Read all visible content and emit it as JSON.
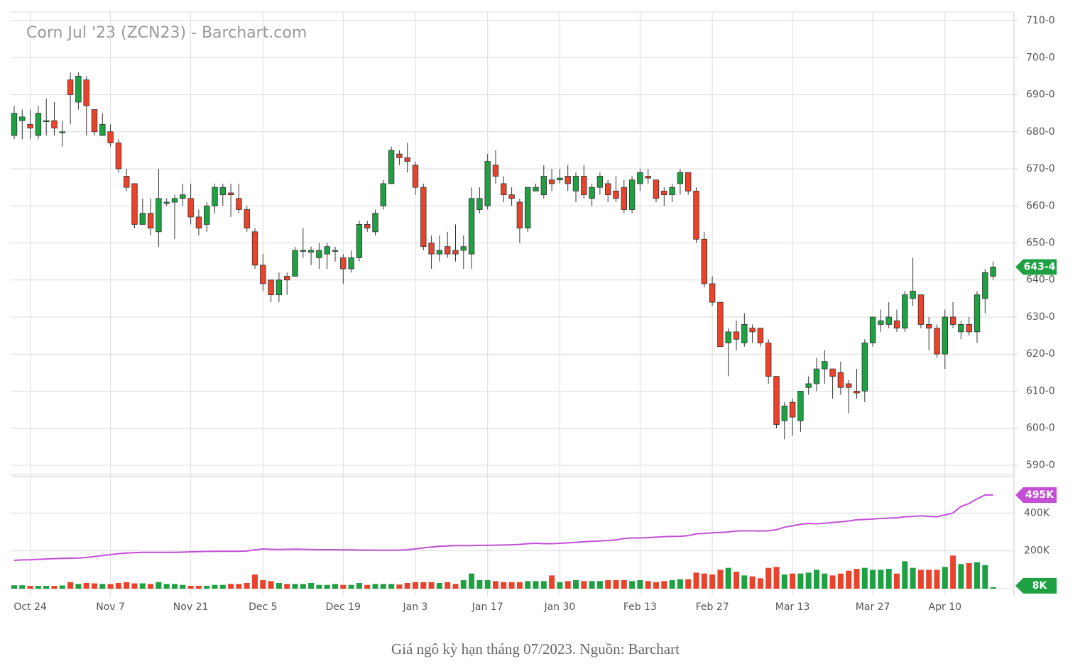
{
  "chart_data": {
    "type": "candlestick",
    "title": "Corn Jul '23 (ZCN23) - Barchart.com",
    "caption": "Giá ngô kỳ hạn tháng 07/2023. Nguồn: Barchart",
    "categories": [
      null,
      null,
      "Oct 24",
      null,
      null,
      null,
      null,
      null,
      null,
      null,
      null,
      null,
      "Nov 7",
      null,
      null,
      null,
      null,
      null,
      null,
      null,
      null,
      null,
      "Nov 21",
      null,
      null,
      null,
      null,
      null,
      null,
      null,
      null,
      "Dec 5",
      null,
      null,
      null,
      null,
      null,
      null,
      null,
      null,
      null,
      "Dec 19",
      null,
      null,
      null,
      null,
      null,
      null,
      null,
      null,
      "Jan 3",
      null,
      null,
      null,
      null,
      null,
      null,
      null,
      null,
      "Jan 17",
      null,
      null,
      null,
      null,
      null,
      null,
      null,
      null,
      "Jan 30",
      null,
      null,
      null,
      null,
      null,
      null,
      null,
      null,
      null,
      "Feb 13",
      null,
      null,
      null,
      null,
      null,
      null,
      null,
      null,
      "Feb 27",
      null,
      null,
      null,
      null,
      null,
      null,
      null,
      null,
      null,
      "Mar 13",
      null,
      null,
      null,
      null,
      null,
      null,
      null,
      null,
      null,
      "Mar 27",
      null,
      null,
      null,
      null,
      null,
      null,
      null,
      null,
      "Apr 10",
      null,
      null,
      null,
      null,
      null,
      null
    ],
    "open": [
      679,
      683,
      682,
      679,
      683,
      683,
      680,
      694,
      688,
      694,
      686,
      679,
      680,
      677,
      668,
      666,
      655,
      658,
      653,
      661,
      661,
      662,
      662,
      657,
      655,
      660,
      663,
      663.5,
      662,
      659,
      653,
      644,
      640,
      636,
      641,
      641,
      648,
      647.5,
      646,
      647,
      648,
      646,
      643,
      646,
      655,
      653,
      660,
      666,
      674,
      673,
      671,
      665,
      650,
      647,
      649,
      648,
      648,
      647,
      659,
      660,
      671,
      666,
      663,
      661,
      654,
      664,
      663,
      667,
      667,
      668,
      664,
      668,
      662,
      665,
      666,
      664,
      665,
      659,
      666,
      668,
      667,
      664,
      663,
      666,
      669,
      664,
      651,
      639,
      634,
      623,
      626,
      623,
      627,
      627,
      623,
      614,
      602,
      607,
      602,
      611,
      612,
      616,
      616,
      615,
      612,
      610,
      610,
      623,
      628,
      628,
      629,
      627,
      635,
      636,
      628,
      627,
      620,
      630,
      626,
      628,
      626,
      635,
      641
    ],
    "high": [
      687,
      686,
      686,
      687,
      689,
      688,
      683,
      696,
      696,
      695,
      686,
      685,
      682,
      678,
      670,
      666,
      662,
      662,
      670,
      662,
      663,
      666,
      666,
      659,
      661,
      666,
      666,
      666,
      666,
      660,
      654,
      647,
      640,
      642,
      642,
      649,
      654,
      649,
      650,
      650,
      649,
      647,
      648,
      656,
      656,
      659,
      667,
      676,
      675,
      677,
      672,
      666,
      652,
      652,
      653,
      655,
      652,
      665,
      665,
      674,
      675,
      668,
      665,
      662,
      665,
      666,
      671,
      670,
      670,
      671,
      669,
      671,
      666,
      669,
      667,
      668,
      667,
      668,
      670,
      670,
      667,
      665,
      666,
      670,
      669,
      665,
      653,
      641,
      634,
      627,
      629,
      631,
      628,
      627,
      624,
      614,
      607,
      608,
      610,
      614,
      619,
      621,
      616,
      618,
      613,
      616,
      624,
      630,
      632,
      634,
      632,
      637,
      646,
      636,
      630,
      628,
      632,
      634,
      629,
      630,
      637,
      643,
      645
    ],
    "low": [
      678,
      678,
      678,
      678,
      679,
      679,
      676,
      682,
      686,
      679,
      679,
      679,
      676,
      669,
      664,
      654,
      655,
      652,
      649,
      660,
      651,
      660,
      655,
      652,
      653,
      658,
      660,
      657,
      658,
      653,
      643,
      637,
      634,
      634,
      636,
      641,
      646,
      644,
      643,
      643,
      645,
      639,
      642,
      645,
      653,
      652,
      659,
      666,
      671,
      669,
      663,
      648,
      643,
      645,
      646,
      645,
      643,
      643,
      658,
      659,
      666,
      661,
      660,
      650,
      653,
      664,
      662,
      664,
      666,
      664,
      661,
      662,
      660,
      663,
      661,
      661,
      658,
      658,
      664,
      666,
      661,
      660,
      661,
      663,
      663,
      650,
      638,
      633,
      622,
      614,
      621,
      622,
      623,
      622,
      612,
      600,
      597,
      598,
      599,
      609,
      610,
      612,
      608,
      609,
      604,
      608,
      607,
      622,
      626,
      627,
      626,
      626,
      633,
      627,
      621,
      619,
      616,
      627,
      624,
      625,
      623,
      631,
      640
    ],
    "close": [
      685,
      684,
      681,
      685,
      683,
      681,
      680,
      690,
      695,
      687,
      680,
      682,
      677,
      670,
      665,
      655,
      658,
      654,
      662,
      661,
      662,
      663,
      657,
      654,
      660,
      665,
      665,
      663,
      659,
      654,
      644,
      639,
      636,
      640,
      640,
      648,
      648,
      648,
      648,
      649,
      648,
      643,
      646,
      655,
      654,
      658,
      666,
      675,
      673,
      672,
      665,
      649,
      647,
      648,
      647,
      647,
      649,
      662,
      662,
      672,
      668,
      663,
      662,
      654,
      665,
      665,
      668,
      666,
      667.5,
      666,
      668,
      663,
      665,
      668,
      663,
      662,
      659,
      667,
      669,
      667.5,
      662,
      663,
      665,
      669,
      664,
      651,
      639,
      634,
      622,
      626,
      624,
      628,
      626,
      623,
      614,
      601,
      606,
      603,
      610,
      612,
      616,
      618,
      614,
      611,
      611,
      609.5,
      623,
      630,
      629,
      630,
      627,
      636,
      637,
      628,
      627,
      620,
      630,
      628,
      628,
      626,
      636,
      642,
      643.5
    ],
    "volume": [
      18000,
      18000,
      15000,
      15000,
      15000,
      15000,
      17000,
      35000,
      25000,
      30000,
      28000,
      25000,
      25000,
      30000,
      35000,
      28000,
      28000,
      25000,
      35000,
      25000,
      25000,
      20000,
      15000,
      15000,
      15000,
      20000,
      20000,
      25000,
      25000,
      30000,
      75000,
      45000,
      40000,
      30000,
      25000,
      25000,
      25000,
      30000,
      20000,
      20000,
      25000,
      20000,
      20000,
      30000,
      20000,
      25000,
      25000,
      25000,
      22000,
      30000,
      35000,
      35000,
      35000,
      30000,
      35000,
      25000,
      45000,
      80000,
      45000,
      45000,
      40000,
      35000,
      35000,
      35000,
      40000,
      40000,
      40000,
      70000,
      35000,
      40000,
      45000,
      40000,
      40000,
      40000,
      45000,
      45000,
      45000,
      40000,
      45000,
      40000,
      35000,
      40000,
      45000,
      50000,
      50000,
      85000,
      80000,
      75000,
      100000,
      110000,
      90000,
      70000,
      65000,
      55000,
      110000,
      115000,
      75000,
      80000,
      80000,
      85000,
      100000,
      80000,
      70000,
      80000,
      95000,
      105000,
      110000,
      100000,
      100000,
      105000,
      80000,
      145000,
      110000,
      100000,
      100000,
      100000,
      115000,
      175000,
      130000,
      135000,
      140000,
      125000,
      8000
    ],
    "open_interest": [
      150000,
      152000,
      153000,
      155000,
      157000,
      159000,
      160000,
      161000,
      162000,
      165000,
      170000,
      175000,
      180000,
      185000,
      188000,
      190000,
      192000,
      192000,
      192000,
      192000,
      192000,
      193000,
      195000,
      196000,
      197000,
      197000,
      198000,
      198000,
      198000,
      199000,
      205000,
      210000,
      208000,
      207000,
      208000,
      209000,
      208000,
      207000,
      206000,
      206000,
      206000,
      205000,
      205000,
      204000,
      204000,
      203000,
      203000,
      203000,
      204000,
      206000,
      210000,
      216000,
      220000,
      224000,
      226000,
      228000,
      228000,
      228000,
      229000,
      229000,
      230000,
      231000,
      232000,
      234000,
      238000,
      240000,
      238000,
      238000,
      240000,
      242000,
      245000,
      248000,
      250000,
      252000,
      255000,
      258000,
      265000,
      268000,
      268000,
      270000,
      272000,
      275000,
      276000,
      277000,
      280000,
      290000,
      292000,
      295000,
      297000,
      300000,
      305000,
      306000,
      306000,
      305000,
      306000,
      312000,
      325000,
      332000,
      340000,
      345000,
      343000,
      346000,
      350000,
      353000,
      358000,
      364000,
      366000,
      368000,
      371000,
      373000,
      375000,
      380000,
      382000,
      385000,
      382000,
      380000,
      390000,
      400000,
      435000,
      450000,
      475000,
      495000,
      495000
    ],
    "up_color": "#1fa043",
    "down_color": "#e8432c",
    "oi_color": "#c24fd6",
    "ylim": [
      587.5,
      712.5
    ],
    "yticks": [
      {
        "value": 590,
        "label": "590-0"
      },
      {
        "value": 600,
        "label": "600-0"
      },
      {
        "value": 610,
        "label": "610-0"
      },
      {
        "value": 620,
        "label": "620-0"
      },
      {
        "value": 630,
        "label": "630-0"
      },
      {
        "value": 640,
        "label": "640-0"
      },
      {
        "value": 650,
        "label": "650-0"
      },
      {
        "value": 660,
        "label": "660-0"
      },
      {
        "value": 670,
        "label": "670-0"
      },
      {
        "value": 680,
        "label": "680-0"
      },
      {
        "value": 690,
        "label": "690-0"
      },
      {
        "value": 700,
        "label": "700-0"
      },
      {
        "value": 710,
        "label": "710-0"
      }
    ],
    "volume_ylim": [
      0,
      596000
    ],
    "volume_ticks": [
      {
        "value": 200000,
        "label": "200K"
      },
      {
        "value": 400000,
        "label": "400K"
      }
    ],
    "last_price_label": "643-4",
    "last_oi_label": "495K",
    "last_volume_label": "8K",
    "grid": true
  }
}
